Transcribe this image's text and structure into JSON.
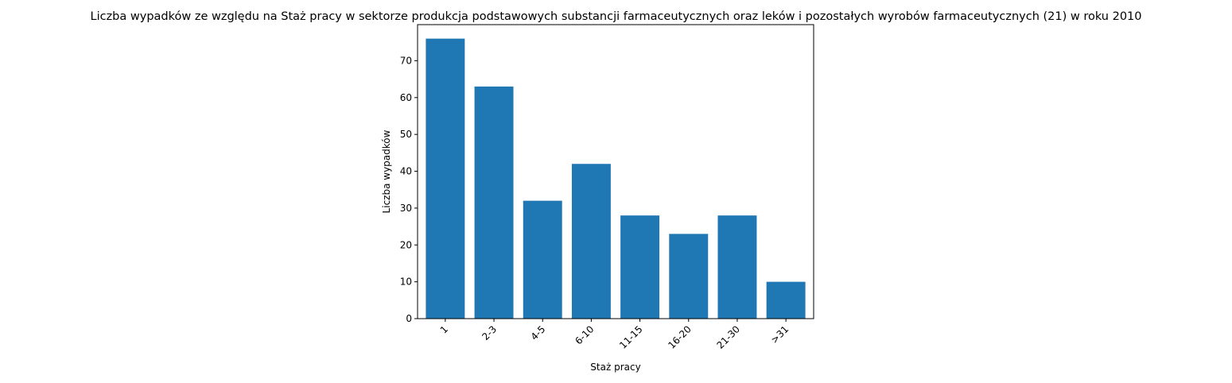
{
  "chart_data": {
    "type": "bar",
    "title": "Liczba wypadków ze względu na Staż pracy w sektorze produkcja podstawowych substancji farmaceutycznych oraz leków i pozostałych wyrobów farmaceutycznych (21)  w roku 2010",
    "xlabel": "Staż pracy",
    "ylabel": "Liczba wypadków",
    "categories": [
      "1",
      "2-3",
      "4-5",
      "6-10",
      "11-15",
      "16-20",
      "21-30",
      ">31"
    ],
    "values": [
      76,
      63,
      32,
      42,
      28,
      23,
      28,
      10
    ],
    "ylim": [
      0,
      79.8
    ],
    "yticks": [
      0,
      10,
      20,
      30,
      40,
      50,
      60,
      70
    ],
    "bar_color": "#1f77b4",
    "grid": false,
    "legend": "none"
  }
}
